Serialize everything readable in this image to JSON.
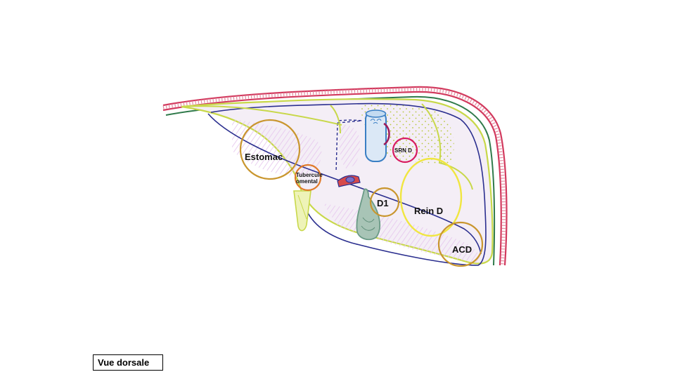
{
  "labels": {
    "estomac": "Estomac",
    "tubercule_line1": "Tubercule",
    "tubercule_line2": "omental",
    "srn": "SRN D",
    "d1": "D1",
    "rein": "Rein D",
    "acd": "ACD"
  },
  "caption": "Vue dorsale",
  "colors": {
    "diaphragm": "#d23a5e",
    "peritoneum_outer": "#2f7a4a",
    "peritoneum_inner": "#2b2f8f",
    "liver_outline": "#c8d84a",
    "liver_fill": "#f4eef6",
    "stomach_circle": "#c9962e",
    "tubercule_circle": "#e07a2a",
    "srn_circle": "#d81b60",
    "kidney_circle": "#f0e640",
    "d1_circle": "#c9962e",
    "acd_circle": "#c9962e",
    "ivc": "#3a7fc4",
    "gallbladder": "#6a9a86"
  }
}
